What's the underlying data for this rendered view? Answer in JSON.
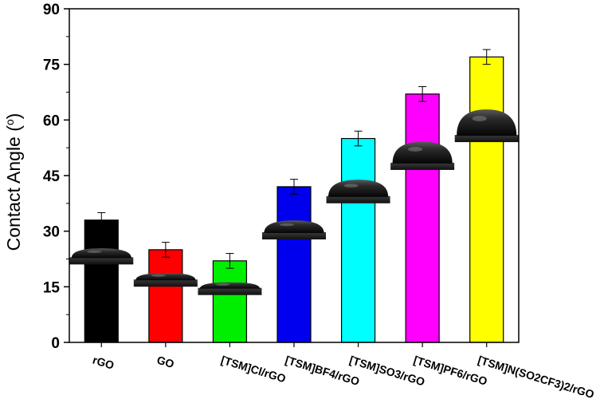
{
  "chart_data": {
    "type": "bar",
    "title": "",
    "xlabel": "",
    "ylabel_main": "Contact Angle (",
    "ylabel_sup": "o",
    "ylabel_end": ")",
    "ylim": [
      0,
      90
    ],
    "yticks": [
      0,
      15,
      30,
      45,
      60,
      75,
      90
    ],
    "grid": false,
    "categories": [
      "rGO",
      "GO",
      "[TSM]Cl/rGO",
      "[TSM]BF4/rGO",
      "[TSM]SO3/rGO",
      "[TSM]PF6/rGO",
      "[TSM]N(SO2CF3)2/rGO"
    ],
    "values": [
      33,
      25,
      22,
      42,
      55,
      67,
      77
    ],
    "errors": [
      2,
      2,
      2,
      2,
      2,
      2,
      2
    ],
    "colors": [
      "#000000",
      "#ff0000",
      "#00ee00",
      "#0000ee",
      "#00ffff",
      "#ff00ff",
      "#ffff00"
    ],
    "droplet_images": "water droplet photos overlaid on each bar"
  }
}
